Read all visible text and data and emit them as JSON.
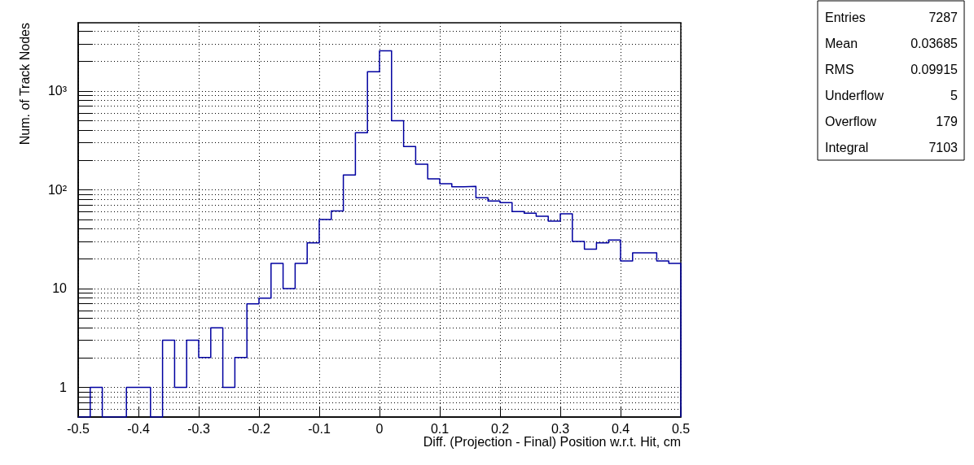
{
  "chart_data": {
    "type": "histogram",
    "xlabel": "Diff. (Projection - Final) Position w.r.t. Hit, cm",
    "ylabel": "Num. of Track Nodes",
    "bins": [
      -0.5,
      -0.48,
      -0.46,
      -0.44,
      -0.42,
      -0.4,
      -0.38,
      -0.36,
      -0.34,
      -0.32,
      -0.3,
      -0.28,
      -0.26,
      -0.24,
      -0.22,
      -0.2,
      -0.18,
      -0.16,
      -0.14,
      -0.12,
      -0.1,
      -0.08,
      -0.06,
      -0.04,
      -0.02,
      0,
      0.02,
      0.04,
      0.06,
      0.08,
      0.1,
      0.12,
      0.14,
      0.16,
      0.18,
      0.2,
      0.22,
      0.24,
      0.26,
      0.28,
      0.3,
      0.32,
      0.34,
      0.36,
      0.38,
      0.4,
      0.42,
      0.44,
      0.46,
      0.48,
      0.5
    ],
    "values": [
      null,
      1,
      null,
      null,
      1,
      1,
      null,
      3,
      1,
      3,
      2,
      4,
      1,
      2,
      7,
      8,
      18,
      10,
      18,
      29,
      50,
      61,
      141,
      378,
      1563,
      2553,
      499,
      274,
      181,
      129,
      115,
      107,
      108,
      83,
      77,
      74,
      60,
      58,
      54,
      48,
      57,
      30,
      25,
      29,
      31,
      19,
      23,
      23,
      19,
      18
    ],
    "color": "#0000a0",
    "log": true,
    "grid": true,
    "xlim": [
      -0.5,
      0.5
    ],
    "xticks": [
      -0.5,
      -0.4,
      -0.3,
      -0.2,
      -0.1,
      0,
      0.1,
      0.2,
      0.3,
      0.4,
      0.5
    ],
    "ylim": [
      0.5,
      4900
    ],
    "yticks": [
      {
        "value": 0.6,
        "label": null
      },
      {
        "value": 0.7,
        "label": null
      },
      {
        "value": 0.8,
        "label": null
      },
      {
        "value": 0.9,
        "label": null
      },
      1,
      {
        "value": 2,
        "label": null
      },
      {
        "value": 3,
        "label": null
      },
      {
        "value": 4,
        "label": null
      },
      {
        "value": 5,
        "label": null
      },
      {
        "value": 6,
        "label": null
      },
      {
        "value": 7,
        "label": null
      },
      {
        "value": 8,
        "label": null
      },
      {
        "value": 9,
        "label": null
      },
      10,
      {
        "value": 20,
        "label": null
      },
      {
        "value": 30,
        "label": null
      },
      {
        "value": 40,
        "label": null
      },
      {
        "value": 50,
        "label": null
      },
      {
        "value": 60,
        "label": null
      },
      {
        "value": 70,
        "label": null
      },
      {
        "value": 80,
        "label": null
      },
      {
        "value": 90,
        "label": null
      },
      {
        "value": 100,
        "label": "10²"
      },
      {
        "value": 200,
        "label": null
      },
      {
        "value": 300,
        "label": null
      },
      {
        "value": 400,
        "label": null
      },
      {
        "value": 500,
        "label": null
      },
      {
        "value": 600,
        "label": null
      },
      {
        "value": 700,
        "label": null
      },
      {
        "value": 800,
        "label": null
      },
      {
        "value": 900,
        "label": null
      },
      {
        "value": 1000,
        "label": "10³"
      },
      {
        "value": 2000,
        "label": null
      },
      {
        "value": 3000,
        "label": null
      },
      {
        "value": 4000,
        "label": null
      }
    ],
    "annotations": [
      "Entries 7287",
      "Mean 0.03685",
      "RMS 0.09915",
      "Underflow 5",
      "Overflow 179",
      "Integral 7103"
    ]
  }
}
